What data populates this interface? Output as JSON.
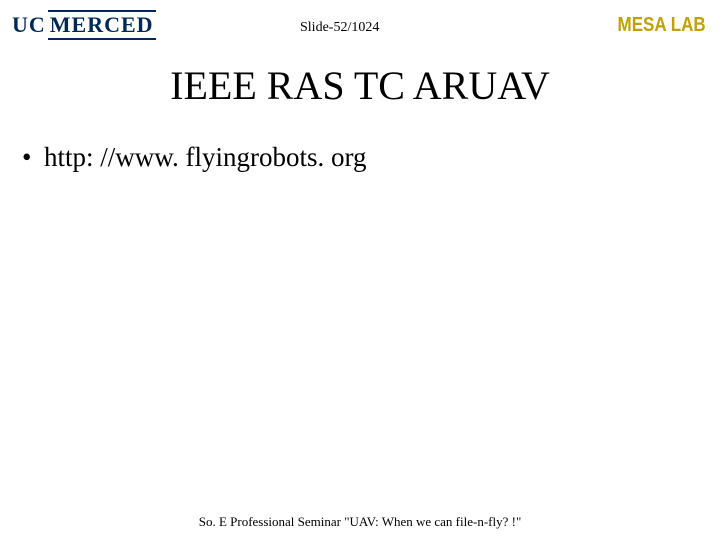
{
  "header": {
    "logo_uc": "UC",
    "logo_merced": "MERCED",
    "slide_number": "Slide-52/1024",
    "lab_label": "MESA LAB"
  },
  "title": "IEEE RAS TC ARUAV",
  "bullets": [
    {
      "text": "http: //www. flyingrobots. org"
    }
  ],
  "footer": "So. E Professional Seminar \"UAV: When we can file-n-fly? !\"",
  "colors": {
    "background": "#ffffff",
    "text": "#000000",
    "logo_blue": "#002856",
    "lab_gold": "#bfa100"
  },
  "typography": {
    "title_fontsize": 40,
    "bullet_fontsize": 27,
    "footer_fontsize": 13,
    "slidenum_fontsize": 14,
    "lab_fontsize": 20
  }
}
